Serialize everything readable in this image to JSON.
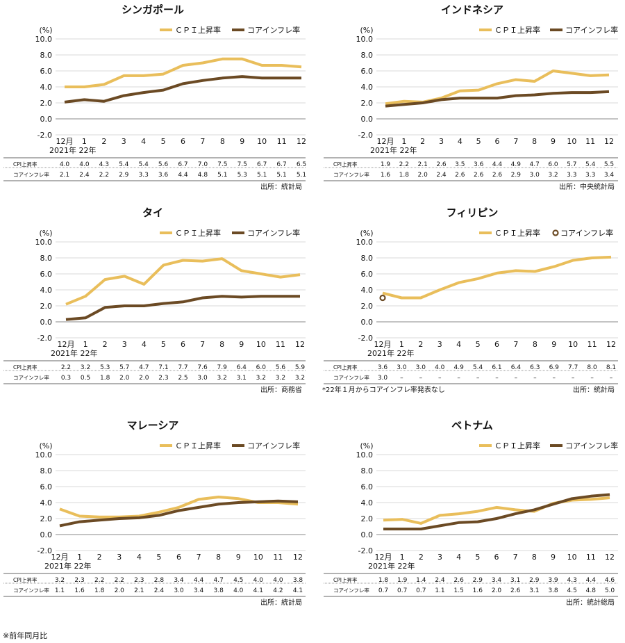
{
  "footnote": "※前年同月比",
  "chart_data": [
    {
      "type": "line",
      "title": "シンガポール",
      "ylabel": "(%)",
      "ylim": [
        -2,
        10
      ],
      "yticks": [
        "10.0",
        "8.0",
        "6.0",
        "4.0",
        "2.0",
        "0.0",
        "-2.0"
      ],
      "categories": [
        "12月",
        "1",
        "2",
        "3",
        "4",
        "5",
        "6",
        "7",
        "8",
        "9",
        "10",
        "11",
        "12"
      ],
      "year_label": "2021年 22年",
      "series": [
        {
          "name": "ＣＰＩ上昇率",
          "row_label": "CPI上昇率",
          "values": [
            4.0,
            4.0,
            4.3,
            5.4,
            5.4,
            5.6,
            6.7,
            7.0,
            7.5,
            7.5,
            6.7,
            6.7,
            6.5
          ],
          "text": [
            "4.0",
            "4.0",
            "4.3",
            "5.4",
            "5.4",
            "5.6",
            "6.7",
            "7.0",
            "7.5",
            "7.5",
            "6.7",
            "6.7",
            "6.5"
          ]
        },
        {
          "name": "コアインフレ率",
          "row_label": "コアインフレ率",
          "values": [
            2.1,
            2.4,
            2.2,
            2.9,
            3.3,
            3.6,
            4.4,
            4.8,
            5.1,
            5.3,
            5.1,
            5.1,
            5.1
          ],
          "text": [
            "2.1",
            "2.4",
            "2.2",
            "2.9",
            "3.3",
            "3.6",
            "4.4",
            "4.8",
            "5.1",
            "5.3",
            "5.1",
            "5.1",
            "5.1"
          ]
        }
      ],
      "source": "出所：統計局"
    },
    {
      "type": "line",
      "title": "インドネシア",
      "ylabel": "(%)",
      "ylim": [
        -2,
        10
      ],
      "yticks": [
        "10.0",
        "8.0",
        "6.0",
        "4.0",
        "2.0",
        "0.0",
        "-2.0"
      ],
      "categories": [
        "12月",
        "1",
        "2",
        "3",
        "4",
        "5",
        "6",
        "7",
        "8",
        "9",
        "10",
        "11",
        "12"
      ],
      "year_label": "2021年 22年",
      "series": [
        {
          "name": "ＣＰＩ上昇率",
          "row_label": "CPI上昇率",
          "values": [
            1.9,
            2.2,
            2.1,
            2.6,
            3.5,
            3.6,
            4.4,
            4.9,
            4.7,
            6.0,
            5.7,
            5.4,
            5.5
          ],
          "text": [
            "1.9",
            "2.2",
            "2.1",
            "2.6",
            "3.5",
            "3.6",
            "4.4",
            "4.9",
            "4.7",
            "6.0",
            "5.7",
            "5.4",
            "5.5"
          ]
        },
        {
          "name": "コアインフレ率",
          "row_label": "コアインフレ率",
          "values": [
            1.6,
            1.8,
            2.0,
            2.4,
            2.6,
            2.6,
            2.6,
            2.9,
            3.0,
            3.2,
            3.3,
            3.3,
            3.4
          ],
          "text": [
            "1.6",
            "1.8",
            "2.0",
            "2.4",
            "2.6",
            "2.6",
            "2.6",
            "2.9",
            "3.0",
            "3.2",
            "3.3",
            "3.3",
            "3.4"
          ]
        }
      ],
      "source": "出所：中央統計局"
    },
    {
      "type": "line",
      "title": "タイ",
      "ylabel": "(%)",
      "ylim": [
        -2,
        10
      ],
      "yticks": [
        "10.0",
        "8.0",
        "6.0",
        "4.0",
        "2.0",
        "0.0",
        "-2.0"
      ],
      "categories": [
        "12月",
        "1",
        "2",
        "3",
        "4",
        "5",
        "6",
        "7",
        "8",
        "9",
        "10",
        "11",
        "12"
      ],
      "year_label": "2021年 22年",
      "series": [
        {
          "name": "ＣＰＩ上昇率",
          "row_label": "CPI上昇率",
          "values": [
            2.2,
            3.2,
            5.3,
            5.7,
            4.7,
            7.1,
            7.7,
            7.6,
            7.9,
            6.4,
            6.0,
            5.6,
            5.9
          ],
          "text": [
            "2.2",
            "3.2",
            "5.3",
            "5.7",
            "4.7",
            "7.1",
            "7.7",
            "7.6",
            "7.9",
            "6.4",
            "6.0",
            "5.6",
            "5.9"
          ]
        },
        {
          "name": "コアインフレ率",
          "row_label": "コアインフレ率",
          "values": [
            0.3,
            0.5,
            1.8,
            2.0,
            2.0,
            2.3,
            2.5,
            3.0,
            3.2,
            3.1,
            3.2,
            3.2,
            3.2
          ],
          "text": [
            "0.3",
            "0.5",
            "1.8",
            "2.0",
            "2.0",
            "2.3",
            "2.5",
            "3.0",
            "3.2",
            "3.1",
            "3.2",
            "3.2",
            "3.2"
          ]
        }
      ],
      "source": "出所：商務省"
    },
    {
      "type": "line",
      "title": "フィリピン",
      "ylabel": "(%)",
      "ylim": [
        -2,
        10
      ],
      "yticks": [
        "10.0",
        "8.0",
        "6.0",
        "4.0",
        "2.0",
        "0.0",
        "-2.0"
      ],
      "categories": [
        "12月",
        "1",
        "2",
        "3",
        "4",
        "5",
        "6",
        "7",
        "8",
        "9",
        "10",
        "11",
        "12"
      ],
      "year_label": "2021年 22年",
      "series": [
        {
          "name": "ＣＰＩ上昇率",
          "row_label": "CPI上昇率",
          "values": [
            3.6,
            3.0,
            3.0,
            4.0,
            4.9,
            5.4,
            6.1,
            6.4,
            6.3,
            6.9,
            7.7,
            8.0,
            8.1
          ],
          "text": [
            "3.6",
            "3.0",
            "3.0",
            "4.0",
            "4.9",
            "5.4",
            "6.1",
            "6.4",
            "6.3",
            "6.9",
            "7.7",
            "8.0",
            "8.1"
          ]
        },
        {
          "name": "コアインフレ率",
          "row_label": "コアインフレ率",
          "marker_only": true,
          "values": [
            3.0,
            null,
            null,
            null,
            null,
            null,
            null,
            null,
            null,
            null,
            null,
            null,
            null
          ],
          "text": [
            "3.0",
            "–",
            "–",
            "–",
            "–",
            "–",
            "–",
            "–",
            "–",
            "–",
            "–",
            "–",
            "–"
          ]
        }
      ],
      "note": "*22年１月からコアインフレ率発表なし",
      "source": "出所：統計局"
    },
    {
      "type": "line",
      "title": "マレーシア",
      "ylabel": "(%)",
      "ylim": [
        -2,
        10
      ],
      "yticks": [
        "10.0",
        "8.0",
        "6.0",
        "4.0",
        "2.0",
        "0.0",
        "-2.0"
      ],
      "categories": [
        "12月",
        "1",
        "2",
        "3",
        "4",
        "5",
        "6",
        "7",
        "8",
        "9",
        "10",
        "11",
        "12"
      ],
      "year_label": "2021年 22年",
      "series": [
        {
          "name": "ＣＰＩ上昇率",
          "row_label": "CPI上昇率",
          "values": [
            3.2,
            2.3,
            2.2,
            2.2,
            2.3,
            2.8,
            3.4,
            4.4,
            4.7,
            4.5,
            4.0,
            4.0,
            3.8
          ],
          "text": [
            "3.2",
            "2.3",
            "2.2",
            "2.2",
            "2.3",
            "2.8",
            "3.4",
            "4.4",
            "4.7",
            "4.5",
            "4.0",
            "4.0",
            "3.8"
          ]
        },
        {
          "name": "コアインフレ率",
          "row_label": "コアインフレ率",
          "values": [
            1.1,
            1.6,
            1.8,
            2.0,
            2.1,
            2.4,
            3.0,
            3.4,
            3.8,
            4.0,
            4.1,
            4.2,
            4.1
          ],
          "text": [
            "1.1",
            "1.6",
            "1.8",
            "2.0",
            "2.1",
            "2.4",
            "3.0",
            "3.4",
            "3.8",
            "4.0",
            "4.1",
            "4.2",
            "4.1"
          ]
        }
      ],
      "source": "出所：統計局"
    },
    {
      "type": "line",
      "title": "ベトナム",
      "ylabel": "(%)",
      "ylim": [
        -2,
        10
      ],
      "yticks": [
        "10.0",
        "8.0",
        "6.0",
        "4.0",
        "2.0",
        "0.0",
        "-2.0"
      ],
      "categories": [
        "12月",
        "1",
        "2",
        "3",
        "4",
        "5",
        "6",
        "7",
        "8",
        "9",
        "10",
        "11",
        "12"
      ],
      "year_label": "2021年 22年",
      "series": [
        {
          "name": "ＣＰＩ上昇率",
          "row_label": "CPI上昇率",
          "values": [
            1.8,
            1.9,
            1.4,
            2.4,
            2.6,
            2.9,
            3.4,
            3.1,
            2.9,
            3.9,
            4.3,
            4.4,
            4.6
          ],
          "text": [
            "1.8",
            "1.9",
            "1.4",
            "2.4",
            "2.6",
            "2.9",
            "3.4",
            "3.1",
            "2.9",
            "3.9",
            "4.3",
            "4.4",
            "4.6"
          ]
        },
        {
          "name": "コアインフレ率",
          "row_label": "コアインフレ率",
          "values": [
            0.7,
            0.7,
            0.7,
            1.1,
            1.5,
            1.6,
            2.0,
            2.6,
            3.1,
            3.8,
            4.5,
            4.8,
            5.0
          ],
          "text": [
            "0.7",
            "0.7",
            "0.7",
            "1.1",
            "1.5",
            "1.6",
            "2.0",
            "2.6",
            "3.1",
            "3.8",
            "4.5",
            "4.8",
            "5.0"
          ]
        }
      ],
      "source": "出所：統計総局"
    }
  ],
  "colors": {
    "cpi": "#E9BE5B",
    "core": "#6B4A24",
    "grid": "#D9D9D9",
    "rule": "#333333"
  }
}
